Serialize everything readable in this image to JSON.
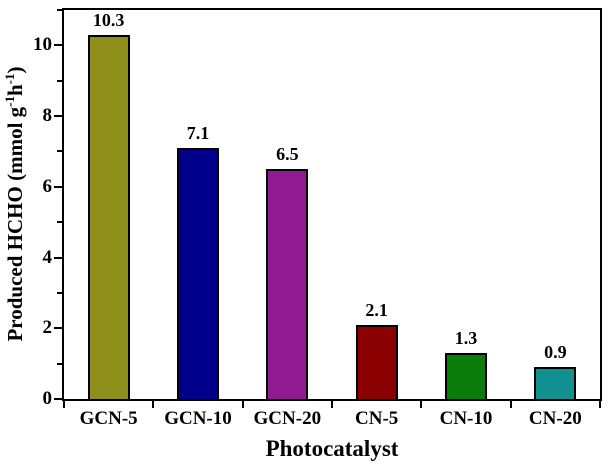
{
  "chart_data": {
    "type": "bar",
    "categories": [
      "GCN-5",
      "GCN-10",
      "GCN-20",
      "CN-5",
      "CN-10",
      "CN-20"
    ],
    "values": [
      10.3,
      7.1,
      6.5,
      2.1,
      1.3,
      0.9
    ],
    "value_labels": [
      "10.3",
      "7.1",
      "6.5",
      "2.1",
      "1.3",
      "0.9"
    ],
    "bar_colors": [
      "#8e8e1b",
      "#00008b",
      "#911a91",
      "#8b0000",
      "#0b7d0b",
      "#109090"
    ],
    "title": "",
    "xlabel": "Photocatalyst",
    "ylabel": "Produced HCHO (mmol g-1h-1)",
    "ylabel_parts": {
      "pre": "Produced HCHO (mmol g",
      "sup1": "-1",
      "mid": "h",
      "sup2": "-1",
      "post": ")"
    },
    "ylim": [
      0,
      11
    ],
    "yticks": [
      0,
      2,
      4,
      6,
      8,
      10
    ],
    "minor_yticks": [
      1,
      3,
      5,
      7,
      9,
      11
    ],
    "grid": false,
    "legend": false,
    "bar_edge_color": "#000000",
    "axis_color": "#000000"
  }
}
